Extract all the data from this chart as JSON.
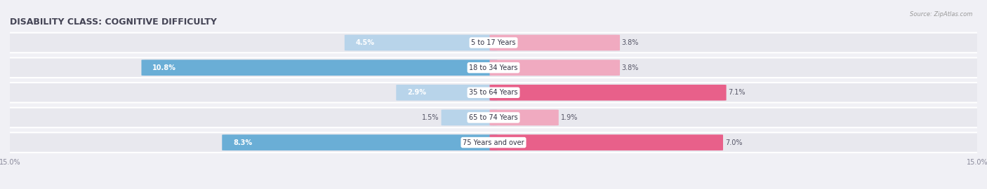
{
  "title": "DISABILITY CLASS: COGNITIVE DIFFICULTY",
  "source": "Source: ZipAtlas.com",
  "categories": [
    "5 to 17 Years",
    "18 to 34 Years",
    "35 to 64 Years",
    "65 to 74 Years",
    "75 Years and over"
  ],
  "male_values": [
    4.5,
    10.8,
    2.9,
    1.5,
    8.3
  ],
  "female_values": [
    3.8,
    3.8,
    7.1,
    1.9,
    7.0
  ],
  "max_val": 15.0,
  "male_color_dark": "#6aaed6",
  "male_color_light": "#b8d4ea",
  "female_color_dark": "#e8608a",
  "female_color_light": "#f0aac0",
  "row_bg": "#e8e8ee",
  "bg_color": "#f0f0f5",
  "title_fontsize": 9,
  "label_fontsize": 7,
  "tick_fontsize": 7,
  "bar_height": 0.62,
  "figsize": [
    14.06,
    2.7
  ]
}
